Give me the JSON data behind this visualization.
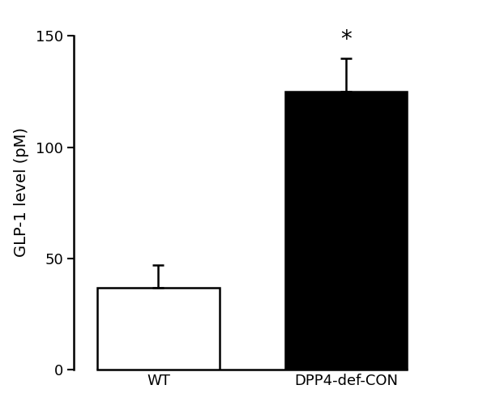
{
  "categories": [
    "WT",
    "DPP4-def-CON"
  ],
  "values": [
    37.0,
    125.0
  ],
  "errors": [
    10.0,
    15.0
  ],
  "bar_colors": [
    "#ffffff",
    "#000000"
  ],
  "bar_edge_colors": [
    "#000000",
    "#000000"
  ],
  "bar_width": 0.65,
  "bar_positions": [
    1,
    2
  ],
  "ylabel": "GLP-1 level (pM)",
  "ylim": [
    0,
    160
  ],
  "yticks": [
    0,
    50,
    100,
    150
  ],
  "significance": [
    "",
    "*"
  ],
  "sig_fontsize": 20,
  "ylabel_fontsize": 14,
  "tick_fontsize": 13,
  "xtick_fontsize": 13,
  "error_capsize": 5,
  "error_linewidth": 1.8,
  "bar_linewidth": 1.8,
  "background_color": "#ffffff",
  "xlim": [
    0.55,
    2.75
  ]
}
